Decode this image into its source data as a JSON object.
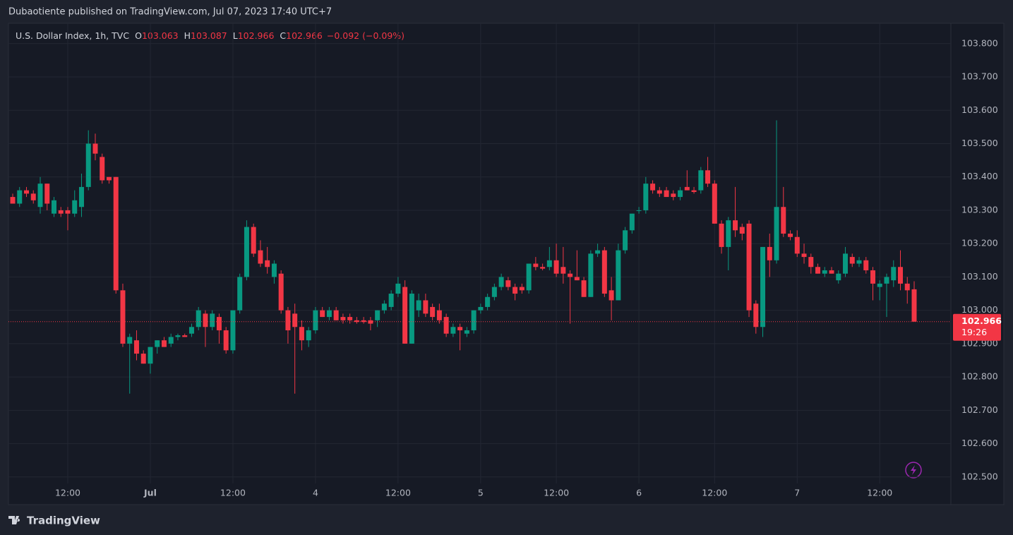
{
  "header": "Dubaotiente published on TradingView.com, Jul 07, 2023 17:40 UTC+7",
  "footer": {
    "brand": "TradingView"
  },
  "chart_data": {
    "type": "candlestick",
    "title": "U.S. Dollar Index, 1h, TVC",
    "legend": {
      "labels": [
        "O",
        "H",
        "L",
        "C"
      ],
      "values": [
        103.063,
        103.087,
        102.966,
        102.966
      ],
      "change": {
        "value": -0.092,
        "label": "−0.092"
      },
      "change_pct": {
        "value": -0.09,
        "label": "(−0.09%)"
      }
    },
    "last_price": {
      "value": 102.966,
      "countdown": "19:26"
    },
    "up_color": "#089981",
    "down_color": "#f23645",
    "grid": true,
    "ylim": [
      102.417,
      103.861
    ],
    "yticks": [
      {
        "value": 103.8,
        "label": "103.800"
      },
      {
        "value": 103.7,
        "label": "103.700"
      },
      {
        "value": 103.6,
        "label": "103.600"
      },
      {
        "value": 103.5,
        "label": "103.500"
      },
      {
        "value": 103.4,
        "label": "103.400"
      },
      {
        "value": 103.3,
        "label": "103.300"
      },
      {
        "value": 103.2,
        "label": "103.200"
      },
      {
        "value": 103.1,
        "label": "103.100"
      },
      {
        "value": 103.0,
        "label": "103.000"
      },
      {
        "value": 102.9,
        "label": "102.900"
      },
      {
        "value": 102.8,
        "label": "102.800"
      },
      {
        "value": 102.7,
        "label": "102.700"
      },
      {
        "value": 102.6,
        "label": "102.600"
      },
      {
        "value": 102.5,
        "label": "102.500"
      }
    ],
    "categories": [
      null,
      null,
      null,
      null,
      null,
      null,
      null,
      null,
      "12:00",
      null,
      null,
      null,
      null,
      null,
      null,
      null,
      null,
      null,
      null,
      null,
      "Jul",
      null,
      null,
      null,
      null,
      null,
      null,
      null,
      null,
      null,
      null,
      null,
      "12:00",
      null,
      null,
      null,
      null,
      null,
      null,
      null,
      null,
      null,
      null,
      null,
      "4",
      null,
      null,
      null,
      null,
      null,
      null,
      null,
      null,
      null,
      null,
      null,
      "12:00",
      null,
      null,
      null,
      null,
      null,
      null,
      null,
      null,
      null,
      null,
      null,
      "5",
      null,
      null,
      null,
      null,
      null,
      null,
      null,
      null,
      null,
      null,
      "12:00",
      null,
      null,
      null,
      null,
      null,
      null,
      null,
      null,
      null,
      null,
      null,
      "6",
      null,
      null,
      null,
      null,
      null,
      null,
      null,
      null,
      null,
      null,
      "12:00",
      null,
      null,
      null,
      null,
      null,
      null,
      null,
      null,
      null,
      null,
      null,
      "7",
      null,
      null,
      null,
      null,
      null,
      null,
      null,
      null,
      null,
      null,
      null,
      "12:00",
      null,
      null,
      null,
      null,
      null
    ],
    "open": [
      103.34,
      103.32,
      103.36,
      103.35,
      103.31,
      103.38,
      103.29,
      103.3,
      103.3,
      103.29,
      103.31,
      103.37,
      103.5,
      103.46,
      103.4,
      103.4,
      103.06,
      102.9,
      102.91,
      102.87,
      102.84,
      102.89,
      102.91,
      102.9,
      102.92,
      102.925,
      102.93,
      102.95,
      102.99,
      102.95,
      102.98,
      102.94,
      102.88,
      103.0,
      103.1,
      103.25,
      103.18,
      103.15,
      103.1,
      103.11,
      103.0,
      102.99,
      102.95,
      102.91,
      102.94,
      103.0,
      102.98,
      103.0,
      102.98,
      102.98,
      102.97,
      102.97,
      102.97,
      102.97,
      103.0,
      103.01,
      103.05,
      103.07,
      102.9,
      103.0,
      103.03,
      103.01,
      103.0,
      102.98,
      102.93,
      102.95,
      102.93,
      102.94,
      103.0,
      103.01,
      103.04,
      103.07,
      103.09,
      103.07,
      103.07,
      103.06,
      103.14,
      103.13,
      103.13,
      103.15,
      103.13,
      103.11,
      103.1,
      103.09,
      103.04,
      103.17,
      103.18,
      103.06,
      103.03,
      103.18,
      103.24,
      103.3,
      103.3,
      103.38,
      103.36,
      103.36,
      103.35,
      103.34,
      103.37,
      103.36,
      103.36,
      103.42,
      103.38,
      103.26,
      103.19,
      103.27,
      103.25,
      103.26,
      103.02,
      102.95,
      103.19,
      103.15,
      103.31,
      103.23,
      103.22,
      103.17,
      103.16,
      103.13,
      103.11,
      103.12,
      103.09,
      103.11,
      103.16,
      103.14,
      103.15,
      103.12,
      103.07,
      103.08,
      103.09,
      103.13,
      103.08,
      103.063
    ],
    "high": [
      103.35,
      103.37,
      103.37,
      103.36,
      103.4,
      103.38,
      103.34,
      103.31,
      103.31,
      103.36,
      103.41,
      103.54,
      103.53,
      103.47,
      103.4,
      103.4,
      103.08,
      102.93,
      102.94,
      102.88,
      102.89,
      102.91,
      102.92,
      102.93,
      102.93,
      102.93,
      102.96,
      103.01,
      103.0,
      103.0,
      102.99,
      102.95,
      103.0,
      103.11,
      103.27,
      103.26,
      103.21,
      103.19,
      103.15,
      103.12,
      103.01,
      103.02,
      102.97,
      102.95,
      103.01,
      103.01,
      103.01,
      103.01,
      102.99,
      102.99,
      102.98,
      102.98,
      102.98,
      103.0,
      103.03,
      103.06,
      103.1,
      103.09,
      103.06,
      103.05,
      103.05,
      103.02,
      103.02,
      102.99,
      102.96,
      102.96,
      102.95,
      103.0,
      103.02,
      103.05,
      103.08,
      103.11,
      103.1,
      103.08,
      103.08,
      103.14,
      103.16,
      103.14,
      103.19,
      103.2,
      103.19,
      103.12,
      103.18,
      103.1,
      103.18,
      103.2,
      103.19,
      103.1,
      103.2,
      103.25,
      103.29,
      103.31,
      103.4,
      103.39,
      103.37,
      103.37,
      103.36,
      103.37,
      103.42,
      103.37,
      103.43,
      103.46,
      103.39,
      103.27,
      103.28,
      103.37,
      103.26,
      103.27,
      103.03,
      103.19,
      103.23,
      103.57,
      103.37,
      103.24,
      103.24,
      103.2,
      103.17,
      103.14,
      103.13,
      103.13,
      103.12,
      103.19,
      103.17,
      103.16,
      103.16,
      103.13,
      103.09,
      103.11,
      103.15,
      103.18,
      103.1,
      103.087
    ],
    "low": [
      103.32,
      103.31,
      103.34,
      103.32,
      103.29,
      103.3,
      103.28,
      103.28,
      103.24,
      103.28,
      103.28,
      103.36,
      103.45,
      103.38,
      103.38,
      103.05,
      102.89,
      102.75,
      102.85,
      102.84,
      102.81,
      102.87,
      102.89,
      102.89,
      102.91,
      102.92,
      102.92,
      102.94,
      102.89,
      102.94,
      102.9,
      102.87,
      102.87,
      102.99,
      103.09,
      103.16,
      103.13,
      103.11,
      103.08,
      102.99,
      102.9,
      102.75,
      102.88,
      102.89,
      102.93,
      102.98,
      102.97,
      102.97,
      102.96,
      102.96,
      102.96,
      102.96,
      102.94,
      102.95,
      102.99,
      103.0,
      103.04,
      102.9,
      102.9,
      102.98,
      102.98,
      102.97,
      102.96,
      102.92,
      102.92,
      102.88,
      102.92,
      102.93,
      102.99,
      103.0,
      103.03,
      103.06,
      103.06,
      103.03,
      103.05,
      103.05,
      103.12,
      103.12,
      103.12,
      103.1,
      103.08,
      102.96,
      103.09,
      103.04,
      103.04,
      103.16,
      103.04,
      102.97,
      103.03,
      103.17,
      103.23,
      103.29,
      103.29,
      103.35,
      103.34,
      103.34,
      103.33,
      103.33,
      103.36,
      103.35,
      103.35,
      103.37,
      103.26,
      103.17,
      103.12,
      103.22,
      103.21,
      102.98,
      102.93,
      102.92,
      103.1,
      103.14,
      103.22,
      103.21,
      103.16,
      103.14,
      103.11,
      103.11,
      103.1,
      103.11,
      103.08,
      103.1,
      103.13,
      103.13,
      103.11,
      103.03,
      103.03,
      102.98,
      103.07,
      103.06,
      103.02,
      102.966
    ],
    "close": [
      103.32,
      103.36,
      103.35,
      103.33,
      103.38,
      103.32,
      103.33,
      103.29,
      103.29,
      103.33,
      103.37,
      103.5,
      103.47,
      103.39,
      103.39,
      103.06,
      102.9,
      102.92,
      102.87,
      102.84,
      102.89,
      102.91,
      102.89,
      102.92,
      102.925,
      102.92,
      102.95,
      103.0,
      102.95,
      102.99,
      102.94,
      102.88,
      103.0,
      103.1,
      103.25,
      103.17,
      103.14,
      103.13,
      103.14,
      103.0,
      102.94,
      102.95,
      102.91,
      102.94,
      103.0,
      102.98,
      103.0,
      102.97,
      102.97,
      102.97,
      102.965,
      102.965,
      102.96,
      103.0,
      103.02,
      103.05,
      103.08,
      102.9,
      103.05,
      103.03,
      102.99,
      102.98,
      102.97,
      102.93,
      102.95,
      102.94,
      102.94,
      103.0,
      103.01,
      103.04,
      103.07,
      103.1,
      103.07,
      103.05,
      103.06,
      103.14,
      103.13,
      103.125,
      103.15,
      103.11,
      103.11,
      103.1,
      103.09,
      103.04,
      103.17,
      103.18,
      103.05,
      103.03,
      103.18,
      103.24,
      103.29,
      103.3,
      103.38,
      103.36,
      103.35,
      103.34,
      103.34,
      103.36,
      103.36,
      103.355,
      103.42,
      103.38,
      103.26,
      103.19,
      103.27,
      103.24,
      103.23,
      103.0,
      102.95,
      103.19,
      103.15,
      103.31,
      103.23,
      103.22,
      103.17,
      103.16,
      103.13,
      103.11,
      103.12,
      103.11,
      103.11,
      103.17,
      103.14,
      103.15,
      103.12,
      103.08,
      103.08,
      103.1,
      103.13,
      103.08,
      103.06,
      102.966
    ]
  }
}
